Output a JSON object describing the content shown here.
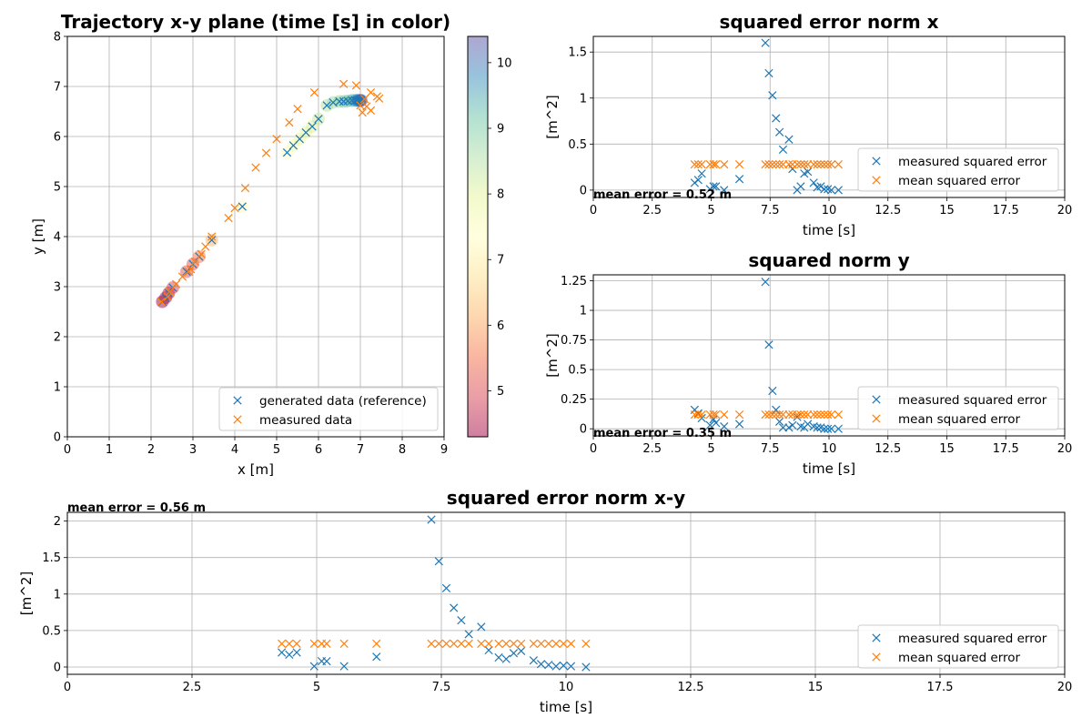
{
  "colors": {
    "series_measured_points": "#1f77b4",
    "series_mean": "#ff7f0e",
    "grid": "#b0b0b0",
    "colormap": "Spectral (alpha 0.5)"
  },
  "chart_data": [
    {
      "id": "trajectory",
      "type": "scatter",
      "title": "Trajectory x-y plane  (time [s] in color)",
      "xlabel": "x [m]",
      "ylabel": "y [m]",
      "xlim": [
        0,
        9
      ],
      "ylim": [
        0,
        8
      ],
      "xticks": [
        0,
        1,
        2,
        3,
        4,
        5,
        6,
        7,
        8,
        9
      ],
      "yticks": [
        0,
        1,
        2,
        3,
        4,
        5,
        6,
        7,
        8
      ],
      "grid": true,
      "legend_position": "lower-right",
      "colorbar": {
        "range": [
          4.3,
          10.4
        ],
        "ticks": [
          5,
          6,
          7,
          8,
          9,
          10
        ],
        "colormap": "Spectral"
      },
      "series": [
        {
          "name": "generated data (reference)",
          "marker": "x",
          "color": "#1f77b4",
          "t": [
            4.3,
            4.45,
            4.6,
            4.95,
            5.1,
            5.2,
            5.55,
            6.2,
            7.3,
            7.45,
            7.6,
            7.75,
            7.9,
            8.05,
            8.3,
            8.45,
            8.65,
            8.8,
            8.95,
            9.1,
            9.35,
            9.5,
            9.65,
            9.8,
            9.95,
            10.1,
            10.4
          ],
          "x": [
            2.27,
            2.35,
            2.42,
            2.52,
            2.85,
            3.0,
            3.15,
            3.45,
            4.18,
            5.25,
            5.4,
            5.55,
            5.7,
            5.85,
            6.0,
            6.2,
            6.35,
            6.5,
            6.6,
            6.7,
            6.8,
            6.88,
            6.92,
            6.95,
            6.98,
            7.0,
            7.02
          ],
          "y": [
            2.7,
            2.78,
            2.87,
            2.98,
            3.3,
            3.45,
            3.6,
            3.93,
            4.6,
            5.68,
            5.82,
            5.95,
            6.08,
            6.2,
            6.35,
            6.62,
            6.68,
            6.7,
            6.7,
            6.71,
            6.72,
            6.72,
            6.72,
            6.72,
            6.72,
            6.72,
            6.72
          ]
        },
        {
          "name": "measured data",
          "marker": "x",
          "color": "#ff7f0e",
          "x": [
            2.25,
            2.4,
            2.45,
            2.6,
            2.75,
            2.9,
            2.95,
            3.05,
            3.2,
            3.3,
            3.45,
            3.85,
            4.0,
            4.25,
            4.5,
            4.75,
            5.0,
            5.3,
            5.5,
            5.9,
            6.6,
            6.9,
            7.0,
            7.05,
            7.1,
            7.15,
            7.25,
            7.25,
            7.4,
            7.45
          ],
          "y": [
            2.7,
            2.8,
            2.9,
            3.05,
            3.2,
            3.3,
            3.35,
            3.5,
            3.65,
            3.8,
            4.0,
            4.37,
            4.57,
            4.97,
            5.38,
            5.67,
            5.95,
            6.28,
            6.55,
            6.88,
            7.05,
            7.02,
            6.62,
            6.48,
            6.75,
            6.6,
            6.52,
            6.88,
            6.8,
            6.76
          ]
        }
      ]
    },
    {
      "id": "err_x",
      "type": "scatter",
      "title": "squared error norm  x",
      "xlabel": "time [s]",
      "ylabel": "[m^2]",
      "xlim": [
        0,
        20
      ],
      "ylim": [
        -0.08,
        1.67
      ],
      "xticks": [
        0,
        2.5,
        5,
        7.5,
        10,
        12.5,
        15,
        17.5,
        20
      ],
      "yticks": [
        0,
        0.5,
        1,
        1.5
      ],
      "grid": true,
      "legend_position": "lower-right",
      "annotation": "mean error = 0.52 m",
      "series": [
        {
          "name": "measured squared error",
          "marker": "x",
          "color": "#1f77b4",
          "x": [
            4.3,
            4.45,
            4.6,
            4.95,
            5.1,
            5.2,
            5.55,
            6.2,
            7.3,
            7.45,
            7.6,
            7.75,
            7.9,
            8.05,
            8.3,
            8.45,
            8.65,
            8.8,
            8.95,
            9.1,
            9.35,
            9.5,
            9.65,
            9.8,
            9.95,
            10.1,
            10.4
          ],
          "y": [
            0.08,
            0.11,
            0.18,
            0.01,
            0.04,
            0.04,
            0.0,
            0.12,
            1.6,
            1.27,
            1.03,
            0.78,
            0.63,
            0.44,
            0.55,
            0.23,
            0.0,
            0.04,
            0.18,
            0.2,
            0.08,
            0.03,
            0.04,
            0.01,
            0.01,
            0.0,
            0.0
          ]
        },
        {
          "name": "mean squared error",
          "marker": "x",
          "color": "#ff7f0e",
          "x": [
            4.3,
            4.45,
            4.6,
            4.95,
            5.1,
            5.2,
            5.55,
            6.2,
            7.3,
            7.45,
            7.6,
            7.75,
            7.9,
            8.05,
            8.3,
            8.45,
            8.65,
            8.8,
            8.95,
            9.1,
            9.35,
            9.5,
            9.65,
            9.8,
            9.95,
            10.1,
            10.4
          ],
          "y": [
            0.28,
            0.28,
            0.28,
            0.28,
            0.28,
            0.28,
            0.28,
            0.28,
            0.28,
            0.28,
            0.28,
            0.28,
            0.28,
            0.28,
            0.28,
            0.28,
            0.28,
            0.28,
            0.28,
            0.28,
            0.28,
            0.28,
            0.28,
            0.28,
            0.28,
            0.28,
            0.28
          ]
        }
      ]
    },
    {
      "id": "err_y",
      "type": "scatter",
      "title": "squared norm  y",
      "xlabel": "time [s]",
      "ylabel": "[m^2]",
      "xlim": [
        0,
        20
      ],
      "ylim": [
        -0.06,
        1.3
      ],
      "xticks": [
        0,
        2.5,
        5,
        7.5,
        10,
        12.5,
        15,
        17.5,
        20
      ],
      "yticks": [
        0,
        0.25,
        0.5,
        0.75,
        1,
        1.25
      ],
      "grid": true,
      "legend_position": "lower-right",
      "annotation": "mean error = 0.35 m",
      "series": [
        {
          "name": "measured squared error",
          "marker": "x",
          "color": "#1f77b4",
          "x": [
            4.3,
            4.45,
            4.6,
            4.95,
            5.1,
            5.2,
            5.55,
            6.2,
            7.3,
            7.45,
            7.6,
            7.75,
            7.9,
            8.05,
            8.3,
            8.45,
            8.65,
            8.8,
            8.95,
            9.1,
            9.35,
            9.5,
            9.65,
            9.8,
            9.95,
            10.1,
            10.4
          ],
          "y": [
            0.16,
            0.13,
            0.09,
            0.03,
            0.08,
            0.05,
            0.02,
            0.04,
            1.24,
            0.71,
            0.32,
            0.16,
            0.06,
            0.01,
            0.01,
            0.03,
            0.1,
            0.02,
            0.01,
            0.04,
            0.02,
            0.01,
            0.01,
            0.0,
            0.0,
            0.0,
            0.0
          ]
        },
        {
          "name": "mean squared error",
          "marker": "x",
          "color": "#ff7f0e",
          "x": [
            4.3,
            4.45,
            4.6,
            4.95,
            5.1,
            5.2,
            5.55,
            6.2,
            7.3,
            7.45,
            7.6,
            7.75,
            7.9,
            8.05,
            8.3,
            8.45,
            8.65,
            8.8,
            8.95,
            9.1,
            9.35,
            9.5,
            9.65,
            9.8,
            9.95,
            10.1,
            10.4
          ],
          "y": [
            0.12,
            0.12,
            0.12,
            0.12,
            0.12,
            0.12,
            0.12,
            0.12,
            0.12,
            0.12,
            0.12,
            0.12,
            0.12,
            0.12,
            0.12,
            0.12,
            0.12,
            0.12,
            0.12,
            0.12,
            0.12,
            0.12,
            0.12,
            0.12,
            0.12,
            0.12,
            0.12
          ]
        }
      ]
    },
    {
      "id": "err_xy",
      "type": "scatter",
      "title": "squared error norm  x-y",
      "xlabel": "time [s]",
      "ylabel": "[m^2]",
      "xlim": [
        0,
        20
      ],
      "ylim": [
        -0.1,
        2.12
      ],
      "xticks": [
        0,
        2.5,
        5,
        7.5,
        10,
        12.5,
        15,
        17.5,
        20
      ],
      "yticks": [
        0,
        0.5,
        1,
        1.5,
        2
      ],
      "grid": true,
      "legend_position": "lower-right",
      "annotation": "mean error = 0.56 m",
      "series": [
        {
          "name": "measured squared error",
          "marker": "x",
          "color": "#1f77b4",
          "x": [
            4.3,
            4.45,
            4.6,
            4.95,
            5.1,
            5.2,
            5.55,
            6.2,
            7.3,
            7.45,
            7.6,
            7.75,
            7.9,
            8.05,
            8.3,
            8.45,
            8.65,
            8.8,
            8.95,
            9.1,
            9.35,
            9.5,
            9.65,
            9.8,
            9.95,
            10.1,
            10.4
          ],
          "y": [
            0.2,
            0.17,
            0.2,
            0.01,
            0.08,
            0.08,
            0.01,
            0.14,
            2.02,
            1.45,
            1.08,
            0.81,
            0.64,
            0.45,
            0.55,
            0.23,
            0.13,
            0.11,
            0.19,
            0.22,
            0.09,
            0.04,
            0.03,
            0.01,
            0.02,
            0.01,
            0.0
          ]
        },
        {
          "name": "mean squared error",
          "marker": "x",
          "color": "#ff7f0e",
          "x": [
            4.3,
            4.45,
            4.6,
            4.95,
            5.1,
            5.2,
            5.55,
            6.2,
            7.3,
            7.45,
            7.6,
            7.75,
            7.9,
            8.05,
            8.3,
            8.45,
            8.65,
            8.8,
            8.95,
            9.1,
            9.35,
            9.5,
            9.65,
            9.8,
            9.95,
            10.1,
            10.4
          ],
          "y": [
            0.32,
            0.32,
            0.32,
            0.32,
            0.32,
            0.32,
            0.32,
            0.32,
            0.32,
            0.32,
            0.32,
            0.32,
            0.32,
            0.32,
            0.32,
            0.32,
            0.32,
            0.32,
            0.32,
            0.32,
            0.32,
            0.32,
            0.32,
            0.32,
            0.32,
            0.32,
            0.32
          ]
        }
      ]
    }
  ]
}
